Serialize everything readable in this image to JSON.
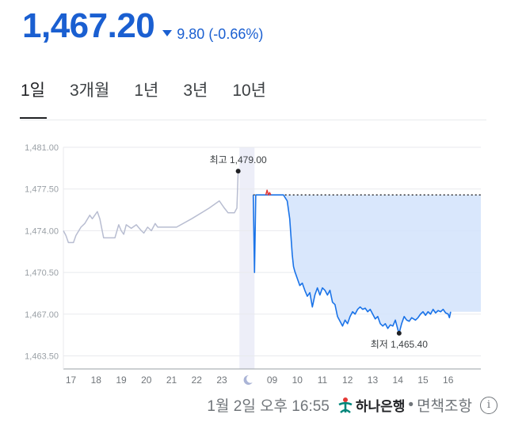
{
  "quote": {
    "price": "1,467.20",
    "change": "9.80 (-0.66%)",
    "direction": "down",
    "accent_color": "#1a5fd1"
  },
  "tabs": [
    {
      "label": "1일",
      "active": true
    },
    {
      "label": "3개월",
      "active": false
    },
    {
      "label": "1년",
      "active": false
    },
    {
      "label": "3년",
      "active": false
    },
    {
      "label": "10년",
      "active": false
    }
  ],
  "footer": {
    "timestamp": "1월 2일 오후 16:55",
    "source": "하나은행",
    "separator": "•",
    "disclaimer": "면책조항",
    "info_icon": "info-icon"
  },
  "chart_data": {
    "type": "line",
    "ylim": [
      1462.4,
      1481.0
    ],
    "yticks": [
      1481.0,
      1477.5,
      1474.0,
      1470.5,
      1467.0,
      1463.5
    ],
    "ytick_labels": [
      "1,481.00",
      "1,477.50",
      "1,474.00",
      "1,470.50",
      "1,467.00",
      "1,463.50"
    ],
    "grid": true,
    "xticks": [
      {
        "label": "17",
        "x": 0.3
      },
      {
        "label": "18",
        "x": 1.3
      },
      {
        "label": "19",
        "x": 2.3
      },
      {
        "label": "20",
        "x": 3.3
      },
      {
        "label": "21",
        "x": 4.3
      },
      {
        "label": "22",
        "x": 5.3
      },
      {
        "label": "23",
        "x": 6.3
      },
      {
        "label": "moon-icon",
        "x": 7.3,
        "icon": true
      },
      {
        "label": "09",
        "x": 8.3
      },
      {
        "label": "10",
        "x": 9.3
      },
      {
        "label": "11",
        "x": 10.3
      },
      {
        "label": "12",
        "x": 11.3
      },
      {
        "label": "13",
        "x": 12.3
      },
      {
        "label": "14",
        "x": 13.3
      },
      {
        "label": "15",
        "x": 14.3
      },
      {
        "label": "16",
        "x": 15.3
      }
    ],
    "xlim": [
      0,
      16.6
    ],
    "previous_close": 1477.0,
    "overnight_band": [
      7.0,
      7.6
    ],
    "series": [
      {
        "role": "overnight",
        "color": "#b8bdd1",
        "points": [
          [
            0,
            1474.0
          ],
          [
            0.1,
            1473.6
          ],
          [
            0.2,
            1473.0
          ],
          [
            0.4,
            1473.0
          ],
          [
            0.5,
            1473.6
          ],
          [
            0.7,
            1474.3
          ],
          [
            0.85,
            1474.6
          ],
          [
            1.05,
            1475.3
          ],
          [
            1.15,
            1475.0
          ],
          [
            1.35,
            1475.6
          ],
          [
            1.45,
            1475.0
          ],
          [
            1.6,
            1473.4
          ],
          [
            2.05,
            1473.4
          ],
          [
            2.2,
            1474.5
          ],
          [
            2.3,
            1474.0
          ],
          [
            2.4,
            1473.7
          ],
          [
            2.5,
            1474.5
          ],
          [
            2.7,
            1474.2
          ],
          [
            2.9,
            1474.5
          ],
          [
            3.1,
            1474.0
          ],
          [
            3.2,
            1473.8
          ],
          [
            3.35,
            1474.3
          ],
          [
            3.5,
            1474.0
          ],
          [
            3.65,
            1474.6
          ],
          [
            3.75,
            1474.3
          ],
          [
            3.9,
            1474.3
          ],
          [
            4.5,
            1474.3
          ],
          [
            5.1,
            1475.0
          ],
          [
            5.8,
            1475.9
          ],
          [
            6.2,
            1476.5
          ],
          [
            6.4,
            1475.9
          ],
          [
            6.55,
            1475.5
          ],
          [
            6.8,
            1475.5
          ],
          [
            6.9,
            1475.9
          ],
          [
            6.95,
            1479.0
          ]
        ]
      },
      {
        "role": "session",
        "color": "#1a73e8",
        "fill": "#d2e3fc",
        "points": [
          [
            7.55,
            1477.0
          ],
          [
            7.6,
            1470.5
          ],
          [
            7.65,
            1477.0
          ],
          [
            8.75,
            1477.0
          ],
          [
            8.9,
            1476.5
          ],
          [
            9.0,
            1475.0
          ],
          [
            9.05,
            1473.5
          ],
          [
            9.1,
            1472.0
          ],
          [
            9.15,
            1471.0
          ],
          [
            9.2,
            1470.6
          ],
          [
            9.3,
            1470.0
          ],
          [
            9.4,
            1469.4
          ],
          [
            9.5,
            1469.6
          ],
          [
            9.6,
            1469.0
          ],
          [
            9.7,
            1468.5
          ],
          [
            9.8,
            1468.8
          ],
          [
            9.9,
            1467.6
          ],
          [
            10.0,
            1468.6
          ],
          [
            10.1,
            1469.2
          ],
          [
            10.2,
            1468.6
          ],
          [
            10.3,
            1469.2
          ],
          [
            10.4,
            1469.0
          ],
          [
            10.5,
            1468.6
          ],
          [
            10.6,
            1469.0
          ],
          [
            10.7,
            1468.0
          ],
          [
            10.8,
            1467.8
          ],
          [
            10.9,
            1466.8
          ],
          [
            11.0,
            1466.4
          ],
          [
            11.1,
            1466.0
          ],
          [
            11.2,
            1466.5
          ],
          [
            11.3,
            1466.2
          ],
          [
            11.4,
            1466.8
          ],
          [
            11.5,
            1467.2
          ],
          [
            11.6,
            1467.0
          ],
          [
            11.7,
            1467.4
          ],
          [
            11.8,
            1467.6
          ],
          [
            11.9,
            1467.4
          ],
          [
            12.0,
            1467.5
          ],
          [
            12.1,
            1467.2
          ],
          [
            12.2,
            1467.4
          ],
          [
            12.3,
            1467.0
          ],
          [
            12.4,
            1466.6
          ],
          [
            12.5,
            1466.8
          ],
          [
            12.6,
            1466.2
          ],
          [
            12.7,
            1466.0
          ],
          [
            12.8,
            1466.2
          ],
          [
            12.9,
            1465.8
          ],
          [
            13.0,
            1466.1
          ],
          [
            13.1,
            1466.0
          ],
          [
            13.2,
            1466.5
          ],
          [
            13.3,
            1465.7
          ],
          [
            13.35,
            1465.4
          ],
          [
            13.45,
            1466.2
          ],
          [
            13.55,
            1466.8
          ],
          [
            13.65,
            1466.5
          ],
          [
            13.75,
            1466.4
          ],
          [
            13.85,
            1466.7
          ],
          [
            14.0,
            1466.5
          ],
          [
            14.1,
            1466.7
          ],
          [
            14.2,
            1467.0
          ],
          [
            14.3,
            1467.2
          ],
          [
            14.4,
            1466.9
          ],
          [
            14.5,
            1467.2
          ],
          [
            14.6,
            1467.0
          ],
          [
            14.7,
            1467.4
          ],
          [
            14.8,
            1467.1
          ],
          [
            14.9,
            1467.3
          ],
          [
            15.0,
            1467.2
          ],
          [
            15.1,
            1467.4
          ],
          [
            15.2,
            1467.1
          ],
          [
            15.3,
            1467.0
          ],
          [
            15.35,
            1466.7
          ],
          [
            15.4,
            1467.2
          ]
        ]
      },
      {
        "role": "above-previous-close",
        "color": "#e53935",
        "points": [
          [
            8.05,
            1477.0
          ],
          [
            8.1,
            1477.4
          ],
          [
            8.15,
            1477.0
          ],
          [
            8.2,
            1477.2
          ],
          [
            8.25,
            1477.0
          ]
        ]
      }
    ],
    "annotations": [
      {
        "label": "최고 1,479.00",
        "x": 6.95,
        "y": 1479.0,
        "position": "above"
      },
      {
        "label": "최저 1,465.40",
        "x": 13.35,
        "y": 1465.4,
        "position": "below"
      }
    ]
  }
}
